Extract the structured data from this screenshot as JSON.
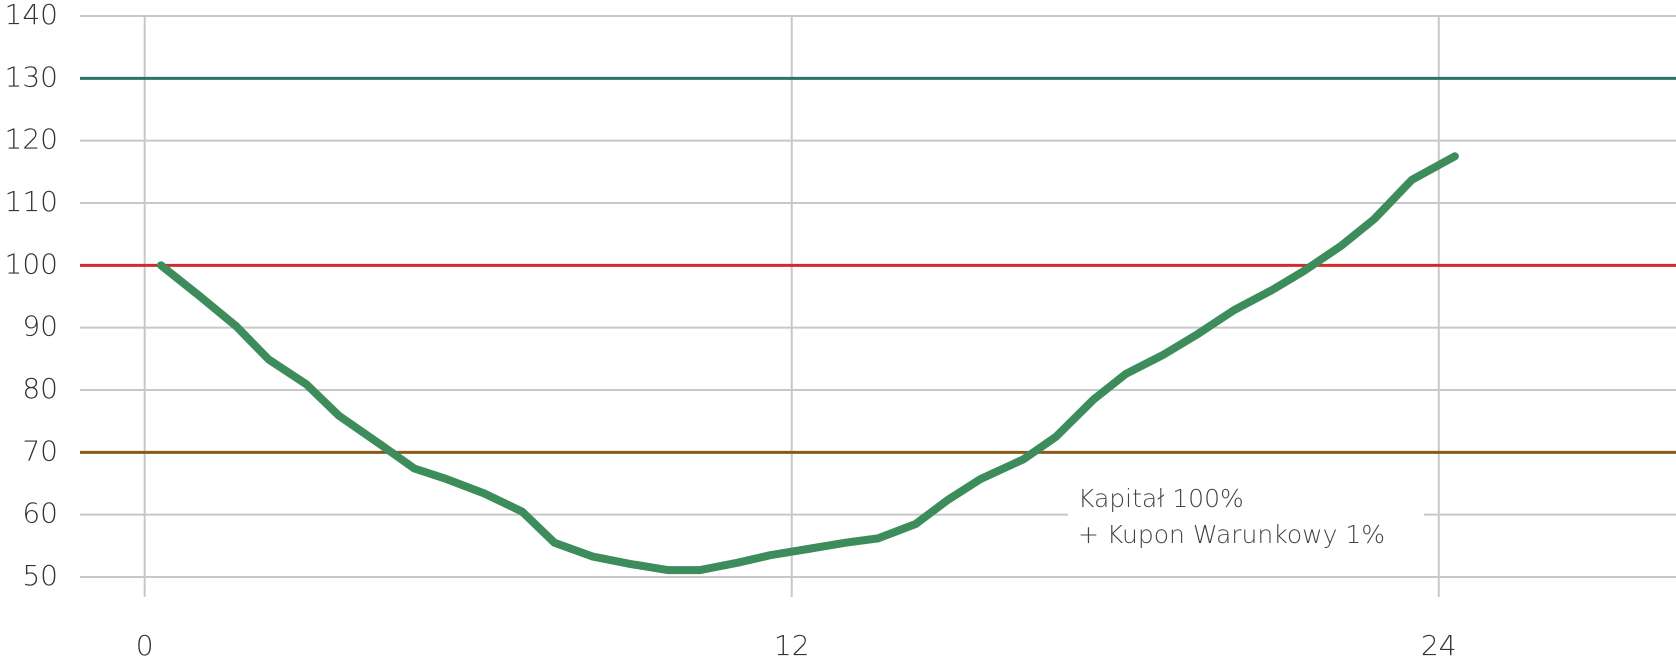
{
  "chart_data": {
    "type": "line",
    "xlim": [
      -1.2,
      28.4
    ],
    "ylim": [
      50,
      140
    ],
    "xticks": [
      0,
      12,
      24
    ],
    "yticks": [
      50,
      60,
      70,
      80,
      90,
      100,
      110,
      120,
      130,
      140
    ],
    "grid": true,
    "reference_lines": [
      {
        "value": 130,
        "color": "#2e7466"
      },
      {
        "value": 100,
        "color": "#d42a2a"
      },
      {
        "value": 70,
        "color": "#8a5a1c"
      }
    ],
    "annotation": [
      "Kapitał 100%",
      "+ Kupon Warunkowy 1%"
    ],
    "series": [
      {
        "color": "#3d8c5c",
        "x": [
          0.3,
          1.0,
          1.7,
          2.3,
          3.0,
          3.6,
          4.4,
          5.0,
          5.6,
          6.3,
          7.0,
          7.6,
          8.3,
          9.0,
          9.7,
          10.3,
          11.0,
          11.6,
          12.3,
          13.0,
          13.6,
          14.3,
          14.9,
          15.5,
          16.3,
          16.9,
          17.6,
          18.2,
          18.9,
          19.5,
          20.2,
          20.9,
          21.5,
          22.2,
          22.8,
          23.5,
          24.3
        ],
        "values": [
          100,
          95.2,
          90.2,
          84.9,
          80.9,
          75.9,
          71.1,
          67.4,
          65.7,
          63.4,
          60.5,
          55.5,
          53.3,
          52.1,
          51.1,
          51.1,
          52.3,
          53.5,
          54.5,
          55.5,
          56.2,
          58.5,
          62.4,
          65.7,
          68.9,
          72.5,
          78.5,
          82.6,
          85.7,
          88.8,
          92.8,
          96.0,
          99.1,
          103.2,
          107.4,
          113.7,
          117.5
        ]
      }
    ]
  }
}
